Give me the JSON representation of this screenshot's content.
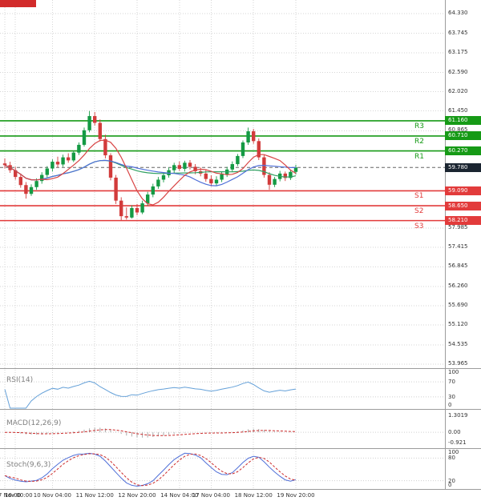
{
  "chart_data": {
    "type": "candlestick",
    "y_axis": {
      "tick_labels": [
        "64.330",
        "63.745",
        "63.175",
        "62.590",
        "62.020",
        "61.450",
        "60.865",
        "57.985",
        "57.415",
        "56.845",
        "56.260",
        "55.690",
        "55.120",
        "54.535",
        "53.965"
      ]
    },
    "x_axis": {
      "labels": [
        {
          "index": 0,
          "text": "16:00"
        },
        {
          "index": 2,
          "text": "7 Nov 00:00"
        },
        {
          "index": 9,
          "text": "10 Nov 04:00"
        },
        {
          "index": 17,
          "text": "11 Nov 12:00"
        },
        {
          "index": 25,
          "text": "12 Nov 20:00"
        },
        {
          "index": 33,
          "text": "14 Nov 04:00"
        },
        {
          "index": 39,
          "text": "17 Nov 04:00"
        },
        {
          "index": 47,
          "text": "18 Nov 12:00"
        },
        {
          "index": 55,
          "text": "19 Nov 20:00"
        }
      ]
    },
    "levels": {
      "resistance": [
        {
          "label": "R3",
          "value": "61.160"
        },
        {
          "label": "R2",
          "value": "60.710"
        },
        {
          "label": "R1",
          "value": "60.270"
        }
      ],
      "support": [
        {
          "label": "S1",
          "value": "59.090"
        },
        {
          "label": "S2",
          "value": "58.650"
        },
        {
          "label": "S3",
          "value": "58.210"
        }
      ],
      "current_price": "59.780"
    },
    "candles": [
      [
        59.9,
        60.05,
        59.75,
        59.85
      ],
      [
        59.85,
        59.95,
        59.62,
        59.7
      ],
      [
        59.7,
        59.8,
        59.42,
        59.5
      ],
      [
        59.5,
        59.6,
        59.18,
        59.26
      ],
      [
        59.26,
        59.35,
        58.86,
        59.0
      ],
      [
        59.0,
        59.28,
        58.94,
        59.2
      ],
      [
        59.2,
        59.46,
        59.12,
        59.38
      ],
      [
        59.38,
        59.64,
        59.3,
        59.56
      ],
      [
        59.56,
        59.82,
        59.48,
        59.75
      ],
      [
        59.75,
        60.02,
        59.66,
        59.95
      ],
      [
        59.95,
        60.1,
        59.78,
        59.87
      ],
      [
        59.87,
        60.16,
        59.8,
        60.08
      ],
      [
        60.08,
        60.2,
        59.92,
        59.99
      ],
      [
        59.99,
        60.28,
        59.94,
        60.22
      ],
      [
        60.22,
        60.52,
        60.15,
        60.45
      ],
      [
        60.45,
        60.96,
        60.4,
        60.88
      ],
      [
        60.88,
        61.45,
        60.82,
        61.3
      ],
      [
        61.3,
        61.42,
        61.02,
        61.1
      ],
      [
        61.1,
        61.2,
        60.55,
        60.62
      ],
      [
        60.62,
        60.75,
        60.05,
        60.14
      ],
      [
        60.14,
        60.2,
        59.4,
        59.48
      ],
      [
        59.48,
        59.56,
        58.7,
        58.8
      ],
      [
        58.8,
        58.9,
        58.22,
        58.34
      ],
      [
        58.34,
        58.6,
        58.24,
        58.3
      ],
      [
        58.3,
        58.66,
        58.27,
        58.58
      ],
      [
        58.58,
        58.7,
        58.37,
        58.45
      ],
      [
        58.45,
        58.8,
        58.4,
        58.72
      ],
      [
        58.72,
        59.06,
        58.65,
        58.98
      ],
      [
        58.98,
        59.3,
        58.9,
        59.22
      ],
      [
        59.22,
        59.5,
        59.15,
        59.42
      ],
      [
        59.42,
        59.62,
        59.34,
        59.55
      ],
      [
        59.55,
        59.78,
        59.48,
        59.7
      ],
      [
        59.7,
        59.92,
        59.62,
        59.85
      ],
      [
        59.85,
        59.96,
        59.68,
        59.74
      ],
      [
        59.74,
        59.98,
        59.66,
        59.92
      ],
      [
        59.92,
        60.0,
        59.72,
        59.8
      ],
      [
        59.8,
        59.88,
        59.58,
        59.67
      ],
      [
        59.67,
        59.78,
        59.52,
        59.6
      ],
      [
        59.6,
        59.7,
        59.36,
        59.44
      ],
      [
        59.44,
        59.55,
        59.22,
        59.31
      ],
      [
        59.31,
        59.52,
        59.24,
        59.42
      ],
      [
        59.42,
        59.66,
        59.35,
        59.58
      ],
      [
        59.58,
        59.8,
        59.5,
        59.72
      ],
      [
        59.72,
        59.96,
        59.64,
        59.88
      ],
      [
        59.88,
        60.18,
        59.82,
        60.12
      ],
      [
        60.12,
        60.58,
        60.06,
        60.52
      ],
      [
        60.52,
        60.96,
        60.45,
        60.85
      ],
      [
        60.85,
        60.92,
        60.48,
        60.56
      ],
      [
        60.56,
        60.64,
        60.0,
        60.08
      ],
      [
        60.08,
        60.15,
        59.48,
        59.56
      ],
      [
        59.56,
        59.64,
        59.12,
        59.27
      ],
      [
        59.27,
        59.5,
        59.2,
        59.44
      ],
      [
        59.44,
        59.68,
        59.37,
        59.6
      ],
      [
        59.6,
        59.66,
        59.38,
        59.47
      ],
      [
        59.47,
        59.72,
        59.41,
        59.65
      ],
      [
        59.65,
        59.86,
        59.57,
        59.78
      ]
    ],
    "indicators": {
      "rsi": {
        "label": "RSI(14)",
        "scale": [
          100,
          70,
          30,
          0
        ]
      },
      "macd": {
        "label": "MACD(12,26,9)",
        "scale": [
          "1.3019",
          "0.00",
          "-0.921"
        ]
      },
      "stoch": {
        "label": "Stoch(9,6,3)",
        "scale": [
          100,
          80,
          20,
          0
        ]
      }
    },
    "colors": {
      "background": "#ffffff",
      "grid": "#d6d6d6",
      "up": "#149a44",
      "down": "#d23b3b",
      "resistance": "#169a16",
      "support": "#e23b3b",
      "current_badge": "#1b2531",
      "ma_fast": "#d84444",
      "ma_mid": "#4f6fd8",
      "ma_slow": "#2fa061",
      "rsi": "#64a0d8",
      "macd_hist": "#a9a9a9",
      "macd_signal": "#cc2a2a",
      "stoch_k": "#4f6fd8",
      "stoch_d": "#cc2a2a",
      "separator": "#9c9c9c",
      "marker": "#d22b2b"
    }
  }
}
